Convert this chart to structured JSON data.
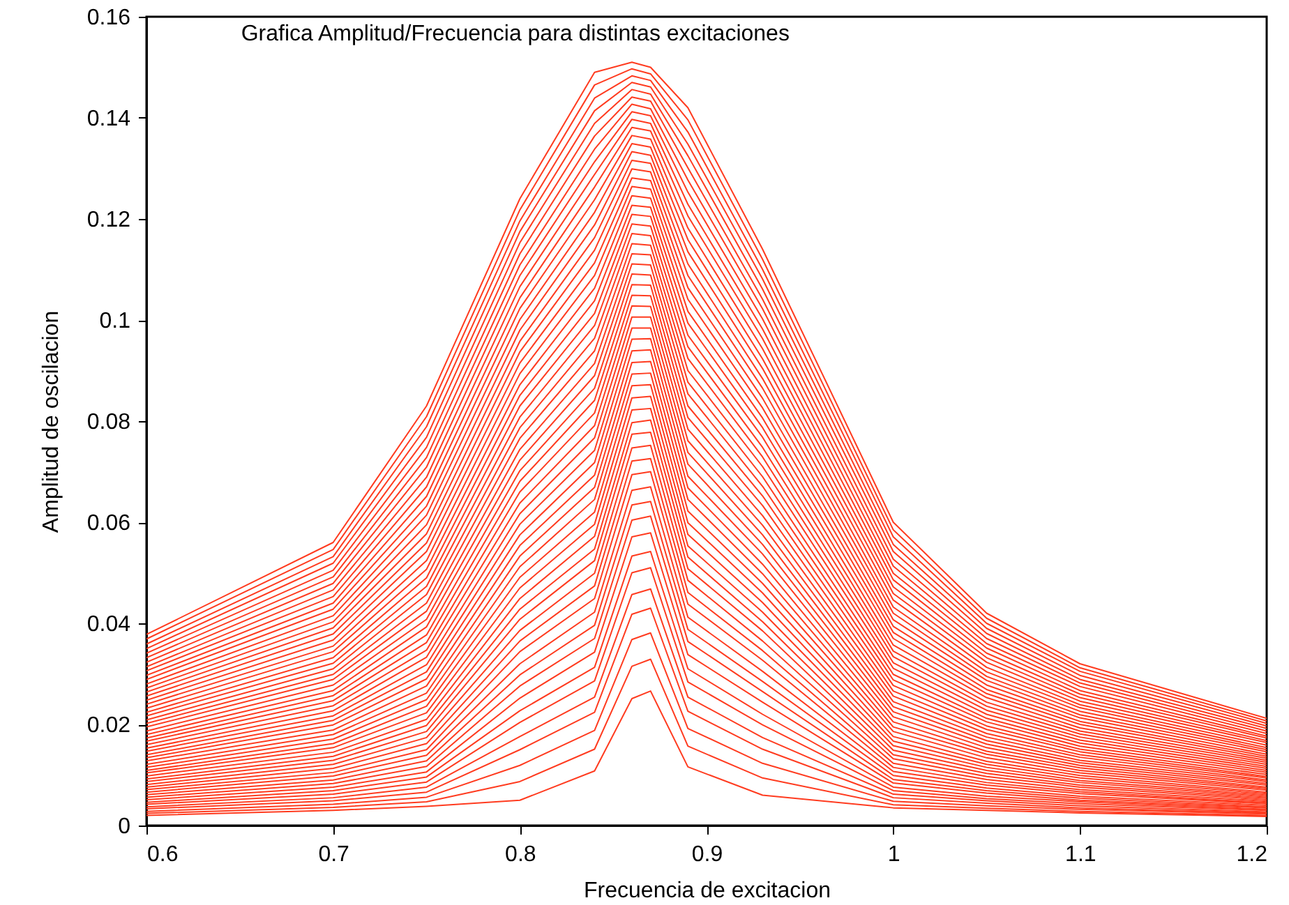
{
  "chart_data": {
    "type": "line",
    "title": "Grafica Amplitud/Frecuencia para distintas excitaciones",
    "xlabel": "Frecuencia de excitacion",
    "ylabel": "Amplitud de oscilacion",
    "xlim": [
      0.6,
      1.2
    ],
    "ylim": [
      0,
      0.16
    ],
    "xticks": [
      0.6,
      0.7,
      0.8,
      0.9,
      1,
      1.1,
      1.2
    ],
    "yticks": [
      0,
      0.02,
      0.04,
      0.06,
      0.08,
      0.1,
      0.12,
      0.14,
      0.16
    ],
    "x": [
      0.6,
      0.7,
      0.75,
      0.8,
      0.84,
      0.86,
      0.87,
      0.89,
      0.93,
      1.0,
      1.05,
      1.1,
      1.2
    ],
    "series": [
      {
        "color": "#ff3b1f",
        "values": [
          0.002,
          0.003,
          0.0038,
          0.005,
          0.0108,
          0.0251,
          0.0266,
          0.0116,
          0.006,
          0.0035,
          0.003,
          0.0025,
          0.0018
        ]
      },
      {
        "color": "#ff3b1f",
        "values": [
          0.0024,
          0.0036,
          0.0047,
          0.0087,
          0.0151,
          0.0315,
          0.0329,
          0.0157,
          0.0094,
          0.0041,
          0.0034,
          0.0028,
          0.002
        ]
      },
      {
        "color": "#ff3b1f",
        "values": [
          0.0028,
          0.0042,
          0.0056,
          0.0119,
          0.0188,
          0.0368,
          0.0381,
          0.0192,
          0.0123,
          0.0048,
          0.0039,
          0.0032,
          0.0023
        ]
      },
      {
        "color": "#ff3b1f",
        "values": [
          0.0033,
          0.0049,
          0.0066,
          0.015,
          0.0224,
          0.0418,
          0.043,
          0.0226,
          0.0151,
          0.0055,
          0.0044,
          0.0035,
          0.0025
        ]
      },
      {
        "color": "#ff3b1f",
        "values": [
          0.0037,
          0.0055,
          0.0076,
          0.0176,
          0.0254,
          0.0457,
          0.0468,
          0.0254,
          0.0174,
          0.0062,
          0.0049,
          0.0039,
          0.0027
        ]
      },
      {
        "color": "#ff3b1f",
        "values": [
          0.0042,
          0.0062,
          0.0086,
          0.0204,
          0.0286,
          0.05,
          0.051,
          0.0284,
          0.0199,
          0.0069,
          0.0053,
          0.0043,
          0.003
        ]
      },
      {
        "color": "#ff3b1f",
        "values": [
          0.0046,
          0.0069,
          0.0096,
          0.0227,
          0.0313,
          0.0533,
          0.0542,
          0.031,
          0.022,
          0.0076,
          0.0058,
          0.0047,
          0.0032
        ]
      },
      {
        "color": "#ff3b1f",
        "values": [
          0.0051,
          0.0076,
          0.0106,
          0.0252,
          0.0343,
          0.0571,
          0.0579,
          0.0338,
          0.0244,
          0.0084,
          0.0064,
          0.005,
          0.0035
        ]
      },
      {
        "color": "#ff3b1f",
        "values": [
          0.0056,
          0.0083,
          0.0117,
          0.0276,
          0.037,
          0.0604,
          0.0612,
          0.0364,
          0.0265,
          0.0091,
          0.0069,
          0.0054,
          0.0037
        ]
      },
      {
        "color": "#ff3b1f",
        "values": [
          0.0061,
          0.009,
          0.0128,
          0.0298,
          0.0396,
          0.0634,
          0.0641,
          0.0388,
          0.0285,
          0.0099,
          0.0074,
          0.0058,
          0.004
        ]
      },
      {
        "color": "#ff3b1f",
        "values": [
          0.0066,
          0.0098,
          0.0139,
          0.032,
          0.0422,
          0.0663,
          0.067,
          0.0412,
          0.0305,
          0.0107,
          0.008,
          0.0063,
          0.0043
        ]
      },
      {
        "color": "#ff3b1f",
        "values": [
          0.0071,
          0.0105,
          0.015,
          0.0344,
          0.0449,
          0.0694,
          0.07,
          0.0438,
          0.0327,
          0.0115,
          0.0085,
          0.0067,
          0.0045
        ]
      },
      {
        "color": "#ff3b1f",
        "values": [
          0.0076,
          0.0113,
          0.0162,
          0.0365,
          0.0474,
          0.0721,
          0.0726,
          0.0461,
          0.0346,
          0.0123,
          0.0091,
          0.0071,
          0.0048
        ]
      },
      {
        "color": "#ff3b1f",
        "values": [
          0.0081,
          0.0121,
          0.0174,
          0.0386,
          0.0499,
          0.0747,
          0.0752,
          0.0485,
          0.0365,
          0.0132,
          0.0097,
          0.0076,
          0.0051
        ]
      },
      {
        "color": "#ff3b1f",
        "values": [
          0.0087,
          0.0129,
          0.0186,
          0.0408,
          0.0524,
          0.0774,
          0.0778,
          0.0508,
          0.0385,
          0.014,
          0.0103,
          0.008,
          0.0054
        ]
      },
      {
        "color": "#ff3b1f",
        "values": [
          0.0092,
          0.0137,
          0.0198,
          0.0428,
          0.0547,
          0.0797,
          0.0802,
          0.0531,
          0.0403,
          0.0149,
          0.0109,
          0.0085,
          0.0057
        ]
      },
      {
        "color": "#ff3b1f",
        "values": [
          0.0098,
          0.0145,
          0.021,
          0.0449,
          0.0572,
          0.0822,
          0.0825,
          0.0553,
          0.0422,
          0.0158,
          0.0115,
          0.0089,
          0.006
        ]
      },
      {
        "color": "#ff3b1f",
        "values": [
          0.0104,
          0.0154,
          0.0223,
          0.047,
          0.0596,
          0.0846,
          0.0849,
          0.0576,
          0.0441,
          0.0167,
          0.0121,
          0.0094,
          0.0063
        ]
      },
      {
        "color": "#ff3b1f",
        "values": [
          0.0109,
          0.0162,
          0.0236,
          0.0491,
          0.062,
          0.087,
          0.0872,
          0.0599,
          0.046,
          0.0176,
          0.0127,
          0.0099,
          0.0066
        ]
      },
      {
        "color": "#ff3b1f",
        "values": [
          0.0115,
          0.0171,
          0.0249,
          0.0512,
          0.0645,
          0.0893,
          0.0895,
          0.0622,
          0.0479,
          0.0186,
          0.0134,
          0.0104,
          0.007
        ]
      },
      {
        "color": "#ff3b1f",
        "values": [
          0.0121,
          0.018,
          0.0262,
          0.0533,
          0.0669,
          0.0916,
          0.0918,
          0.0645,
          0.0498,
          0.0195,
          0.0141,
          0.0109,
          0.0073
        ]
      },
      {
        "color": "#ff3b1f",
        "values": [
          0.0128,
          0.0189,
          0.0276,
          0.0554,
          0.0693,
          0.0939,
          0.0941,
          0.0668,
          0.0517,
          0.0205,
          0.0147,
          0.0114,
          0.0076
        ]
      },
      {
        "color": "#ff3b1f",
        "values": [
          0.0134,
          0.0199,
          0.029,
          0.0575,
          0.0718,
          0.0962,
          0.0963,
          0.0691,
          0.0537,
          0.0215,
          0.0154,
          0.0119,
          0.008
        ]
      },
      {
        "color": "#ff3b1f",
        "values": [
          0.014,
          0.0208,
          0.0304,
          0.0596,
          0.0742,
          0.0984,
          0.0984,
          0.0715,
          0.0556,
          0.0225,
          0.0161,
          0.0124,
          0.0083
        ]
      },
      {
        "color": "#ff3b1f",
        "values": [
          0.0147,
          0.0217,
          0.0318,
          0.0617,
          0.0767,
          0.1006,
          0.1006,
          0.0738,
          0.0575,
          0.0235,
          0.0168,
          0.0129,
          0.0087
        ]
      },
      {
        "color": "#ff3b1f",
        "values": [
          0.0153,
          0.0227,
          0.0333,
          0.0638,
          0.0791,
          0.1028,
          0.1027,
          0.0761,
          0.0594,
          0.0245,
          0.0175,
          0.0135,
          0.009
        ]
      },
      {
        "color": "#ff3b1f",
        "values": [
          0.016,
          0.0237,
          0.0347,
          0.066,
          0.0816,
          0.1049,
          0.1048,
          0.0784,
          0.0613,
          0.0256,
          0.0182,
          0.014,
          0.0094
        ]
      },
      {
        "color": "#ff3b1f",
        "values": [
          0.0167,
          0.0247,
          0.0362,
          0.0681,
          0.0841,
          0.107,
          0.1069,
          0.0807,
          0.0633,
          0.0266,
          0.019,
          0.0146,
          0.0097
        ]
      },
      {
        "color": "#ff3b1f",
        "values": [
          0.0173,
          0.0257,
          0.0377,
          0.0702,
          0.0865,
          0.1091,
          0.1089,
          0.083,
          0.0652,
          0.0277,
          0.0197,
          0.0151,
          0.0101
        ]
      },
      {
        "color": "#ff3b1f",
        "values": [
          0.018,
          0.0267,
          0.0393,
          0.0723,
          0.089,
          0.1111,
          0.1109,
          0.0854,
          0.0671,
          0.0288,
          0.0205,
          0.0157,
          0.0105
        ]
      },
      {
        "color": "#ff3b1f",
        "values": [
          0.0187,
          0.0278,
          0.0408,
          0.0744,
          0.0914,
          0.1131,
          0.1129,
          0.0877,
          0.069,
          0.0299,
          0.0212,
          0.0163,
          0.0109
        ]
      },
      {
        "color": "#ff3b1f",
        "values": [
          0.0195,
          0.0289,
          0.0424,
          0.0766,
          0.0939,
          0.1151,
          0.1148,
          0.09,
          0.071,
          0.0311,
          0.022,
          0.0169,
          0.0113
        ]
      },
      {
        "color": "#ff3b1f",
        "values": [
          0.0202,
          0.0299,
          0.044,
          0.0787,
          0.0964,
          0.1171,
          0.1167,
          0.0924,
          0.0729,
          0.0322,
          0.0228,
          0.0175,
          0.0117
        ]
      },
      {
        "color": "#ff3b1f",
        "values": [
          0.0209,
          0.031,
          0.0457,
          0.0808,
          0.0989,
          0.119,
          0.1186,
          0.0947,
          0.0748,
          0.0334,
          0.0236,
          0.0181,
          0.0121
        ]
      },
      {
        "color": "#ff3b1f",
        "values": [
          0.0217,
          0.0321,
          0.0473,
          0.083,
          0.1013,
          0.1209,
          0.1205,
          0.097,
          0.0768,
          0.0345,
          0.0244,
          0.0187,
          0.0125
        ]
      },
      {
        "color": "#ff3b1f",
        "values": [
          0.0224,
          0.0332,
          0.049,
          0.0851,
          0.1038,
          0.1227,
          0.1223,
          0.0994,
          0.0787,
          0.0357,
          0.0253,
          0.0193,
          0.0129
        ]
      },
      {
        "color": "#ff3b1f",
        "values": [
          0.0232,
          0.0344,
          0.0507,
          0.0872,
          0.1063,
          0.1246,
          0.1241,
          0.1017,
          0.0806,
          0.037,
          0.0261,
          0.02,
          0.0133
        ]
      },
      {
        "color": "#ff3b1f",
        "values": [
          0.024,
          0.0355,
          0.0524,
          0.0894,
          0.1088,
          0.1264,
          0.1259,
          0.1041,
          0.0826,
          0.0382,
          0.0269,
          0.0206,
          0.0137
        ]
      },
      {
        "color": "#ff3b1f",
        "values": [
          0.0248,
          0.0367,
          0.0542,
          0.0915,
          0.1113,
          0.1281,
          0.1276,
          0.1064,
          0.0845,
          0.0394,
          0.0278,
          0.0213,
          0.0141
        ]
      },
      {
        "color": "#ff3b1f",
        "values": [
          0.0256,
          0.0379,
          0.0559,
          0.0937,
          0.1138,
          0.1299,
          0.1293,
          0.1088,
          0.0865,
          0.0407,
          0.0287,
          0.0219,
          0.0146
        ]
      },
      {
        "color": "#ff3b1f",
        "values": [
          0.0264,
          0.0391,
          0.0577,
          0.0958,
          0.1163,
          0.1316,
          0.131,
          0.1111,
          0.0884,
          0.042,
          0.0295,
          0.0226,
          0.015
        ]
      },
      {
        "color": "#ff3b1f",
        "values": [
          0.0272,
          0.0403,
          0.0595,
          0.098,
          0.1188,
          0.1333,
          0.1326,
          0.1135,
          0.0904,
          0.0432,
          0.0304,
          0.0233,
          0.0154
        ]
      },
      {
        "color": "#ff3b1f",
        "values": [
          0.028,
          0.0415,
          0.0614,
          0.1001,
          0.1213,
          0.1349,
          0.1342,
          0.1159,
          0.0923,
          0.0446,
          0.0313,
          0.0239,
          0.0159
        ]
      },
      {
        "color": "#ff3b1f",
        "values": [
          0.0289,
          0.0428,
          0.0632,
          0.1023,
          0.1238,
          0.1365,
          0.1358,
          0.1182,
          0.0943,
          0.0459,
          0.0323,
          0.0246,
          0.0164
        ]
      },
      {
        "color": "#ff3b1f",
        "values": [
          0.0297,
          0.044,
          0.0651,
          0.1044,
          0.1263,
          0.1381,
          0.1374,
          0.1206,
          0.0963,
          0.0472,
          0.0332,
          0.0253,
          0.0168
        ]
      },
      {
        "color": "#ff3b1f",
        "values": [
          0.0306,
          0.0453,
          0.067,
          0.1066,
          0.1288,
          0.1397,
          0.1389,
          0.1229,
          0.0982,
          0.0486,
          0.0341,
          0.026,
          0.0173
        ]
      },
      {
        "color": "#ff3b1f",
        "values": [
          0.0314,
          0.0466,
          0.0689,
          0.1088,
          0.1313,
          0.1412,
          0.1404,
          0.1253,
          0.1002,
          0.0499,
          0.0351,
          0.0267,
          0.0177
        ]
      },
      {
        "color": "#ff3b1f",
        "values": [
          0.0323,
          0.0479,
          0.0709,
          0.1109,
          0.1338,
          0.1427,
          0.1418,
          0.1277,
          0.1022,
          0.0513,
          0.036,
          0.0275,
          0.0182
        ]
      },
      {
        "color": "#ff3b1f",
        "values": [
          0.0332,
          0.0492,
          0.0728,
          0.1131,
          0.1364,
          0.1441,
          0.1433,
          0.1301,
          0.1041,
          0.0527,
          0.037,
          0.0282,
          0.0187
        ]
      },
      {
        "color": "#ff3b1f",
        "values": [
          0.0341,
          0.0505,
          0.0748,
          0.1153,
          0.1389,
          0.1456,
          0.1447,
          0.1325,
          0.1061,
          0.0542,
          0.038,
          0.0289,
          0.0192
        ]
      },
      {
        "color": "#ff3b1f",
        "values": [
          0.035,
          0.0519,
          0.0768,
          0.1175,
          0.1414,
          0.147,
          0.1461,
          0.1348,
          0.1081,
          0.0556,
          0.039,
          0.0297,
          0.0197
        ]
      },
      {
        "color": "#ff3b1f",
        "values": [
          0.0359,
          0.0532,
          0.0789,
          0.1196,
          0.1439,
          0.1483,
          0.1474,
          0.1372,
          0.11,
          0.0571,
          0.04,
          0.0305,
          0.0202
        ]
      },
      {
        "color": "#ff3b1f",
        "values": [
          0.0369,
          0.0546,
          0.0809,
          0.1218,
          0.1465,
          0.1497,
          0.1487,
          0.1396,
          0.112,
          0.0585,
          0.041,
          0.0312,
          0.0207
        ]
      },
      {
        "color": "#ff3b1f",
        "values": [
          0.0378,
          0.056,
          0.083,
          0.124,
          0.149,
          0.151,
          0.15,
          0.142,
          0.114,
          0.06,
          0.042,
          0.032,
          0.0212
        ]
      }
    ]
  }
}
